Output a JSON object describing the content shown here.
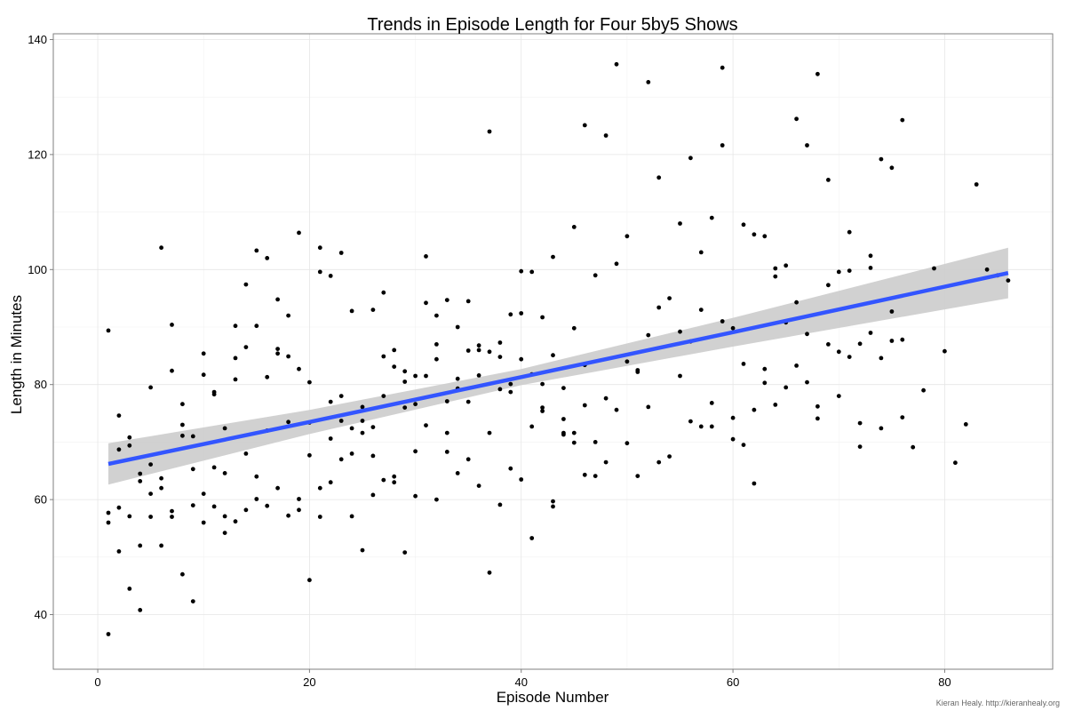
{
  "chart_data": {
    "type": "scatter",
    "title": "Trends in Episode Length for Four 5by5 Shows",
    "xlabel": "Episode Number",
    "ylabel": "Length in Minutes",
    "xlim": [
      -4.2,
      90.2
    ],
    "ylim": [
      30.5,
      141
    ],
    "x_ticks": [
      0,
      20,
      40,
      60,
      80
    ],
    "y_ticks": [
      40,
      60,
      80,
      100,
      120,
      140
    ],
    "x_minor": [
      10,
      30,
      50,
      70,
      90
    ],
    "y_minor": [
      50,
      70,
      90,
      110,
      130
    ],
    "grid": true,
    "credit": "Kieran Healy. http://kieranhealy.org",
    "colors": {
      "fit_line": "#3355ff",
      "ribbon": "#cccccc",
      "points": "#000000",
      "grid": "#e6e6e6",
      "frame": "#7f7f7f"
    },
    "trend": {
      "method": "linear fit with confidence band",
      "x": [
        1,
        20,
        40,
        60,
        86
      ],
      "fit": [
        66.2,
        73.5,
        81.3,
        89.1,
        99.4
      ],
      "lower": [
        62.6,
        71.4,
        79.9,
        86.6,
        95.0
      ],
      "upper": [
        69.8,
        75.6,
        82.7,
        91.6,
        103.8
      ]
    },
    "points": [
      [
        1,
        89.4
      ],
      [
        1,
        57.7
      ],
      [
        1,
        56.0
      ],
      [
        1,
        36.6
      ],
      [
        2,
        74.6
      ],
      [
        2,
        68.7
      ],
      [
        2,
        58.6
      ],
      [
        2,
        51.0
      ],
      [
        3,
        70.8
      ],
      [
        3,
        69.4
      ],
      [
        3,
        57.1
      ],
      [
        3,
        44.5
      ],
      [
        4,
        64.5
      ],
      [
        4,
        63.2
      ],
      [
        4,
        52.0
      ],
      [
        4,
        40.8
      ],
      [
        5,
        79.5
      ],
      [
        5,
        66.1
      ],
      [
        5,
        61.0
      ],
      [
        5,
        57.0
      ],
      [
        6,
        103.8
      ],
      [
        6,
        63.7
      ],
      [
        6,
        62.0
      ],
      [
        6,
        52.0
      ],
      [
        7,
        90.4
      ],
      [
        7,
        82.4
      ],
      [
        7,
        58.0
      ],
      [
        7,
        57.0
      ],
      [
        8,
        76.6
      ],
      [
        8,
        73.0
      ],
      [
        8,
        71.1
      ],
      [
        8,
        47.0
      ],
      [
        9,
        71.0
      ],
      [
        9,
        65.3
      ],
      [
        9,
        59.0
      ],
      [
        9,
        42.3
      ],
      [
        10,
        85.4
      ],
      [
        10,
        81.7
      ],
      [
        10,
        61.0
      ],
      [
        10,
        56.0
      ],
      [
        11,
        78.7
      ],
      [
        11,
        78.3
      ],
      [
        11,
        65.6
      ],
      [
        11,
        58.8
      ],
      [
        12,
        72.4
      ],
      [
        12,
        64.6
      ],
      [
        12,
        57.1
      ],
      [
        12,
        54.2
      ],
      [
        13,
        90.2
      ],
      [
        13,
        84.6
      ],
      [
        13,
        80.9
      ],
      [
        13,
        56.2
      ],
      [
        14,
        97.4
      ],
      [
        14,
        86.5
      ],
      [
        14,
        68.0
      ],
      [
        14,
        58.2
      ],
      [
        15,
        103.3
      ],
      [
        15,
        90.2
      ],
      [
        15,
        64.0
      ],
      [
        15,
        60.1
      ],
      [
        16,
        102.0
      ],
      [
        16,
        81.3
      ],
      [
        16,
        72.0
      ],
      [
        16,
        58.9
      ],
      [
        17,
        94.8
      ],
      [
        17,
        86.2
      ],
      [
        17,
        85.4
      ],
      [
        17,
        62.0
      ],
      [
        18,
        92.0
      ],
      [
        18,
        84.9
      ],
      [
        18,
        73.5
      ],
      [
        18,
        57.2
      ],
      [
        19,
        106.4
      ],
      [
        19,
        82.7
      ],
      [
        19,
        60.1
      ],
      [
        19,
        58.2
      ],
      [
        20,
        80.4
      ],
      [
        20,
        73.4
      ],
      [
        20,
        67.7
      ],
      [
        20,
        46.0
      ],
      [
        21,
        103.8
      ],
      [
        21,
        99.6
      ],
      [
        21,
        62.0
      ],
      [
        21,
        57.0
      ],
      [
        22,
        98.9
      ],
      [
        22,
        77.0
      ],
      [
        22,
        70.6
      ],
      [
        22,
        63.0
      ],
      [
        23,
        102.9
      ],
      [
        23,
        78.0
      ],
      [
        23,
        73.7
      ],
      [
        23,
        67.0
      ],
      [
        24,
        92.8
      ],
      [
        24,
        72.4
      ],
      [
        24,
        68.0
      ],
      [
        24,
        57.1
      ],
      [
        25,
        76.1
      ],
      [
        25,
        73.7
      ],
      [
        25,
        71.6
      ],
      [
        25,
        51.2
      ],
      [
        26,
        93.0
      ],
      [
        26,
        72.6
      ],
      [
        26,
        67.6
      ],
      [
        26,
        60.8
      ],
      [
        27,
        96.0
      ],
      [
        27,
        84.9
      ],
      [
        27,
        78.0
      ],
      [
        27,
        63.4
      ],
      [
        28,
        86.0
      ],
      [
        28,
        83.1
      ],
      [
        28,
        64.0
      ],
      [
        28,
        63.0
      ],
      [
        29,
        82.3
      ],
      [
        29,
        80.5
      ],
      [
        29,
        76.0
      ],
      [
        29,
        50.8
      ],
      [
        30,
        81.5
      ],
      [
        30,
        76.6
      ],
      [
        30,
        68.4
      ],
      [
        30,
        60.6
      ],
      [
        31,
        102.3
      ],
      [
        31,
        94.2
      ],
      [
        31,
        81.5
      ],
      [
        31,
        72.9
      ],
      [
        32,
        92.0
      ],
      [
        32,
        87.0
      ],
      [
        32,
        84.4
      ],
      [
        32,
        60.0
      ],
      [
        33,
        94.7
      ],
      [
        33,
        77.1
      ],
      [
        33,
        71.6
      ],
      [
        33,
        68.3
      ],
      [
        34,
        90.0
      ],
      [
        34,
        81.0
      ],
      [
        34,
        79.3
      ],
      [
        34,
        64.6
      ],
      [
        35,
        94.5
      ],
      [
        35,
        85.9
      ],
      [
        35,
        77.0
      ],
      [
        35,
        67.0
      ],
      [
        36,
        86.8
      ],
      [
        36,
        86.0
      ],
      [
        36,
        81.6
      ],
      [
        36,
        62.4
      ],
      [
        37,
        124.0
      ],
      [
        37,
        85.7
      ],
      [
        37,
        71.6
      ],
      [
        37,
        47.3
      ],
      [
        38,
        87.3
      ],
      [
        38,
        84.8
      ],
      [
        38,
        79.2
      ],
      [
        38,
        59.1
      ],
      [
        39,
        92.2
      ],
      [
        39,
        80.1
      ],
      [
        39,
        78.7
      ],
      [
        39,
        65.4
      ],
      [
        40,
        99.7
      ],
      [
        40,
        92.4
      ],
      [
        40,
        84.4
      ],
      [
        40,
        63.5
      ],
      [
        41,
        99.6
      ],
      [
        41,
        81.8
      ],
      [
        41,
        72.7
      ],
      [
        41,
        53.3
      ],
      [
        42,
        91.7
      ],
      [
        42,
        80.1
      ],
      [
        42,
        76.0
      ],
      [
        42,
        75.4
      ],
      [
        43,
        102.2
      ],
      [
        43,
        85.1
      ],
      [
        43,
        59.7
      ],
      [
        43,
        58.8
      ],
      [
        44,
        79.4
      ],
      [
        44,
        74.0
      ],
      [
        44,
        71.6
      ],
      [
        44,
        71.3
      ],
      [
        45,
        107.4
      ],
      [
        45,
        89.8
      ],
      [
        45,
        71.6
      ],
      [
        45,
        69.9
      ],
      [
        46,
        125.1
      ],
      [
        46,
        83.4
      ],
      [
        46,
        76.4
      ],
      [
        46,
        64.3
      ],
      [
        47,
        99.0
      ],
      [
        47,
        70.0
      ],
      [
        47,
        64.1
      ],
      [
        48,
        123.3
      ],
      [
        48,
        77.6
      ],
      [
        48,
        66.5
      ],
      [
        49,
        135.7
      ],
      [
        49,
        101.0
      ],
      [
        49,
        75.6
      ],
      [
        50,
        105.8
      ],
      [
        50,
        84.0
      ],
      [
        50,
        69.8
      ],
      [
        51,
        82.5
      ],
      [
        51,
        82.2
      ],
      [
        51,
        64.1
      ],
      [
        52,
        132.6
      ],
      [
        52,
        88.6
      ],
      [
        52,
        76.1
      ],
      [
        53,
        116.0
      ],
      [
        53,
        93.4
      ],
      [
        53,
        66.5
      ],
      [
        54,
        95.0
      ],
      [
        54,
        67.5
      ],
      [
        55,
        108.0
      ],
      [
        55,
        89.2
      ],
      [
        55,
        81.5
      ],
      [
        56,
        119.4
      ],
      [
        56,
        87.5
      ],
      [
        56,
        73.6
      ],
      [
        57,
        103.0
      ],
      [
        57,
        93.0
      ],
      [
        57,
        72.7
      ],
      [
        58,
        109.0
      ],
      [
        58,
        76.8
      ],
      [
        58,
        72.7
      ],
      [
        59,
        135.1
      ],
      [
        59,
        121.6
      ],
      [
        59,
        91.0
      ],
      [
        60,
        89.8
      ],
      [
        60,
        74.2
      ],
      [
        60,
        70.5
      ],
      [
        61,
        107.8
      ],
      [
        61,
        83.6
      ],
      [
        61,
        69.5
      ],
      [
        62,
        106.1
      ],
      [
        62,
        75.6
      ],
      [
        62,
        62.8
      ],
      [
        63,
        105.8
      ],
      [
        63,
        82.7
      ],
      [
        63,
        80.3
      ],
      [
        64,
        100.2
      ],
      [
        64,
        98.8
      ],
      [
        64,
        76.5
      ],
      [
        65,
        100.7
      ],
      [
        65,
        90.8
      ],
      [
        65,
        79.5
      ],
      [
        66,
        126.2
      ],
      [
        66,
        94.3
      ],
      [
        66,
        83.3
      ],
      [
        67,
        121.6
      ],
      [
        67,
        88.8
      ],
      [
        67,
        80.4
      ],
      [
        68,
        134.0
      ],
      [
        68,
        76.2
      ],
      [
        68,
        74.1
      ],
      [
        69,
        115.6
      ],
      [
        69,
        97.3
      ],
      [
        69,
        87.0
      ],
      [
        70,
        99.6
      ],
      [
        70,
        85.7
      ],
      [
        70,
        78.0
      ],
      [
        71,
        106.5
      ],
      [
        71,
        99.8
      ],
      [
        71,
        84.8
      ],
      [
        72,
        87.1
      ],
      [
        72,
        73.3
      ],
      [
        72,
        69.2
      ],
      [
        73,
        102.4
      ],
      [
        73,
        100.3
      ],
      [
        73,
        89.0
      ],
      [
        74,
        119.2
      ],
      [
        74,
        84.6
      ],
      [
        74,
        72.4
      ],
      [
        75,
        117.7
      ],
      [
        75,
        92.7
      ],
      [
        75,
        87.6
      ],
      [
        76,
        126.0
      ],
      [
        76,
        87.8
      ],
      [
        76,
        74.3
      ],
      [
        77,
        69.1
      ],
      [
        78,
        79.0
      ],
      [
        79,
        100.2
      ],
      [
        80,
        85.8
      ],
      [
        81,
        66.4
      ],
      [
        82,
        73.1
      ],
      [
        83,
        114.8
      ],
      [
        84,
        100.0
      ],
      [
        85,
        99.0
      ],
      [
        86,
        98.1
      ]
    ]
  }
}
